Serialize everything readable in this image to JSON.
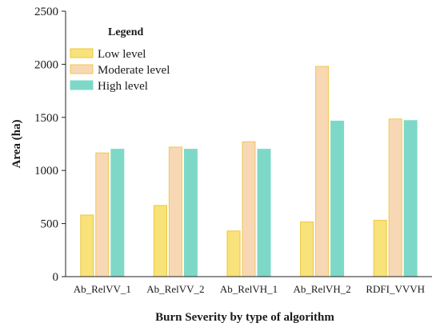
{
  "chart_data": {
    "type": "bar",
    "categories": [
      "Ab_RelVV_1",
      "Ab_RelVV_2",
      "Ab_RelVH_1",
      "Ab_RelVH_2",
      "RDFI_VVVH"
    ],
    "series": [
      {
        "name": "Low level",
        "values": [
          580,
          670,
          430,
          515,
          530
        ],
        "color": "#f8e27a",
        "stroke": "#ecc63a"
      },
      {
        "name": "Moderate level",
        "values": [
          1165,
          1220,
          1270,
          1980,
          1485
        ],
        "color": "#f8d8b4",
        "stroke": "#f0c84c"
      },
      {
        "name": "High level",
        "values": [
          1200,
          1200,
          1200,
          1465,
          1470
        ],
        "color": "#7ed8c8",
        "stroke": "#7ed8c8"
      }
    ],
    "xlabel": "Burn Severity by type of algorithm",
    "ylabel": "Area (ha)",
    "ylim": [
      0,
      2500
    ],
    "yticks": [
      0,
      500,
      1000,
      1500,
      2000,
      2500
    ],
    "legend": {
      "title": "Legend",
      "position": "top-left"
    },
    "grid": false
  }
}
